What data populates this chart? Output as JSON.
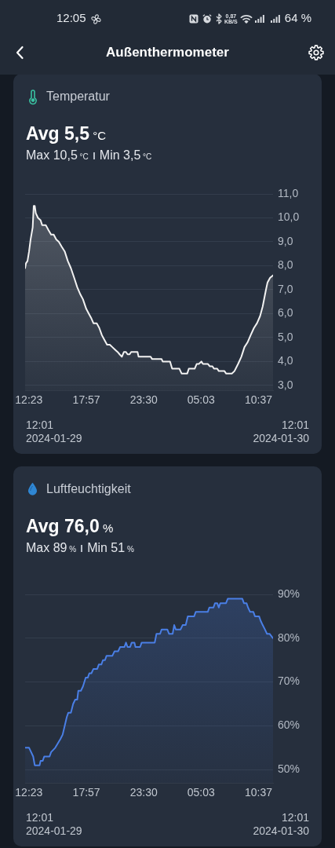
{
  "chart_data": [
    {
      "type": "area",
      "title": "Temperatur",
      "annotations": [
        "12:05",
        "0,87 KB/S",
        "64 %",
        "Außenthermometer",
        "Avg 5,5 °C",
        "Max 10,5 °C",
        "Min 3,5 °C",
        "12:01",
        "2024-01-29",
        "12:01",
        "2024-01-30"
      ],
      "x": [
        "2024-01-29T12:01",
        "2024-01-29T12:06",
        "2024-01-29T12:15",
        "2024-01-29T12:24",
        "2024-01-29T12:33",
        "2024-01-29T12:45",
        "2024-01-29T12:51",
        "2024-01-29T12:57",
        "2024-01-29T13:03",
        "2024-01-29T13:16",
        "2024-01-29T13:31",
        "2024-01-29T13:40",
        "2024-01-29T14:01",
        "2024-01-29T14:16",
        "2024-01-29T14:32",
        "2024-01-29T14:47",
        "2024-01-29T15:02",
        "2024-01-29T15:17",
        "2024-01-29T15:33",
        "2024-01-29T15:51",
        "2024-01-29T16:09",
        "2024-01-29T16:27",
        "2024-01-29T16:46",
        "2024-01-29T17:04",
        "2024-01-29T17:22",
        "2024-01-29T17:37",
        "2024-01-29T17:56",
        "2024-01-29T18:11",
        "2024-01-29T18:26",
        "2024-01-29T18:38",
        "2024-01-29T18:57",
        "2024-01-29T19:12",
        "2024-01-29T19:27",
        "2024-01-29T19:42",
        "2024-01-29T19:57",
        "2024-01-29T20:13",
        "2024-01-29T20:28",
        "2024-01-29T20:43",
        "2024-01-29T20:58",
        "2024-01-29T21:10",
        "2024-01-29T21:23",
        "2024-01-29T21:35",
        "2024-01-29T21:47",
        "2024-01-29T21:56",
        "2024-01-29T22:08",
        "2024-01-29T22:17",
        "2024-01-29T22:54",
        "2024-01-29T23:00",
        "2024-01-30T00:10",
        "2024-01-30T00:19",
        "2024-01-30T01:14",
        "2024-01-30T01:20",
        "2024-01-30T02:03",
        "2024-01-30T02:15",
        "2024-01-30T02:57",
        "2024-01-30T03:10",
        "2024-01-30T03:43",
        "2024-01-30T03:52",
        "2024-01-30T04:26",
        "2024-01-30T04:38",
        "2024-01-30T04:50",
        "2024-01-30T05:05",
        "2024-01-30T05:14",
        "2024-01-30T05:42",
        "2024-01-30T05:54",
        "2024-01-30T06:09",
        "2024-01-30T06:18",
        "2024-01-30T06:37",
        "2024-01-30T06:46",
        "2024-01-30T07:19",
        "2024-01-30T07:28",
        "2024-01-30T08:02",
        "2024-01-30T08:17",
        "2024-01-30T08:38",
        "2024-01-30T08:57",
        "2024-01-30T09:15",
        "2024-01-30T09:33",
        "2024-01-30T09:51",
        "2024-01-30T10:10",
        "2024-01-30T10:28",
        "2024-01-30T10:46",
        "2024-01-30T11:01",
        "2024-01-30T11:20",
        "2024-01-30T11:29",
        "2024-01-30T11:44",
        "2024-01-30T12:01"
      ],
      "values": [
        7.9,
        8.1,
        8.2,
        8.6,
        9.1,
        9.6,
        10.5,
        10.5,
        10.2,
        10.0,
        9.9,
        9.7,
        9.7,
        9.5,
        9.3,
        9.3,
        9.1,
        9.0,
        8.8,
        8.6,
        8.2,
        7.9,
        7.5,
        7.1,
        6.8,
        6.6,
        6.2,
        6.0,
        5.8,
        5.6,
        5.6,
        5.4,
        5.1,
        4.9,
        4.7,
        4.7,
        4.6,
        4.5,
        4.4,
        4.3,
        4.2,
        4.4,
        4.4,
        4.3,
        4.3,
        4.4,
        4.4,
        4.2,
        4.2,
        4.1,
        4.1,
        4.0,
        4.0,
        3.7,
        3.7,
        3.5,
        3.5,
        3.7,
        3.7,
        3.9,
        3.9,
        4.0,
        3.9,
        3.9,
        3.8,
        3.8,
        3.7,
        3.7,
        3.6,
        3.6,
        3.5,
        3.5,
        3.6,
        3.9,
        4.2,
        4.6,
        4.8,
        5.1,
        5.4,
        5.6,
        5.9,
        6.3,
        7.0,
        7.3,
        7.5,
        7.6
      ],
      "color": "#f2f2f2",
      "xlim": [
        "2024-01-29T12:01",
        "2024-01-30T12:01"
      ],
      "xticks": [
        {
          "value": "2024-01-29T12:23",
          "label": "12:23"
        },
        {
          "value": "2024-01-29T17:57",
          "label": "17:57"
        },
        {
          "value": "2024-01-29T23:30",
          "label": "23:30"
        },
        {
          "value": "2024-01-30T05:03",
          "label": "05:03"
        },
        {
          "value": "2024-01-30T10:37",
          "label": "10:37"
        }
      ],
      "ylim": [
        2.8,
        11
      ],
      "yticks": [
        {
          "value": 3,
          "label": "3,0"
        },
        {
          "value": 4,
          "label": "4,0"
        },
        {
          "value": 5,
          "label": "5,0"
        },
        {
          "value": 6,
          "label": "6,0"
        },
        {
          "value": 7,
          "label": "7,0"
        },
        {
          "value": 8,
          "label": "8,0"
        },
        {
          "value": 9,
          "label": "9,0"
        },
        {
          "value": 10,
          "label": "10,0"
        },
        {
          "value": 11,
          "label": "11,0"
        }
      ],
      "grid": "y"
    },
    {
      "type": "area",
      "title": "Luftfeuchtigkeit",
      "annotations": [
        "Avg 76,0 %",
        "Max 89 %",
        "Min 51 %",
        "12:01",
        "2024-01-29",
        "12:01",
        "2024-01-30"
      ],
      "x": [
        "2024-01-29T12:01",
        "2024-01-29T12:24",
        "2024-01-29T12:36",
        "2024-01-29T12:48",
        "2024-01-29T12:57",
        "2024-01-29T13:25",
        "2024-01-29T13:31",
        "2024-01-29T13:43",
        "2024-01-29T13:52",
        "2024-01-29T14:23",
        "2024-01-29T14:32",
        "2024-01-29T14:56",
        "2024-01-29T15:11",
        "2024-01-29T15:26",
        "2024-01-29T15:39",
        "2024-01-29T15:51",
        "2024-01-29T16:03",
        "2024-01-29T16:12",
        "2024-01-29T16:27",
        "2024-01-29T16:40",
        "2024-01-29T16:52",
        "2024-01-29T17:04",
        "2024-01-29T17:10",
        "2024-01-29T17:25",
        "2024-01-29T17:37",
        "2024-01-29T17:53",
        "2024-01-29T18:05",
        "2024-01-29T18:14",
        "2024-01-29T18:26",
        "2024-01-29T18:38",
        "2024-01-29T19:00",
        "2024-01-29T19:09",
        "2024-01-29T19:24",
        "2024-01-29T19:33",
        "2024-01-29T19:45",
        "2024-01-29T19:54",
        "2024-01-29T20:28",
        "2024-01-29T20:40",
        "2024-01-29T21:01",
        "2024-01-29T21:13",
        "2024-01-29T21:38",
        "2024-01-29T21:47",
        "2024-01-29T21:56",
        "2024-01-29T22:11",
        "2024-01-29T22:20",
        "2024-01-29T22:36",
        "2024-01-29T22:42",
        "2024-01-29T23:09",
        "2024-01-29T23:18",
        "2024-01-30T00:34",
        "2024-01-30T00:44",
        "2024-01-30T01:05",
        "2024-01-30T01:14",
        "2024-01-30T01:47",
        "2024-01-30T01:57",
        "2024-01-30T02:18",
        "2024-01-30T02:27",
        "2024-01-30T02:36",
        "2024-01-30T03:04",
        "2024-01-30T03:16",
        "2024-01-30T03:34",
        "2024-01-30T03:46",
        "2024-01-30T04:23",
        "2024-01-30T04:32",
        "2024-01-30T05:42",
        "2024-01-30T05:51",
        "2024-01-30T06:15",
        "2024-01-30T06:24",
        "2024-01-30T06:37",
        "2024-01-30T06:46",
        "2024-01-30T06:55",
        "2024-01-30T07:28",
        "2024-01-30T07:38",
        "2024-01-30T09:03",
        "2024-01-30T09:12",
        "2024-01-30T09:27",
        "2024-01-30T09:36",
        "2024-01-30T09:48",
        "2024-01-30T10:07",
        "2024-01-30T10:16",
        "2024-01-30T10:40",
        "2024-01-30T10:49",
        "2024-01-30T11:01",
        "2024-01-30T11:14",
        "2024-01-30T11:26",
        "2024-01-30T11:41",
        "2024-01-30T12:01"
      ],
      "values": [
        55,
        55,
        54,
        53,
        51,
        51,
        52,
        52,
        53,
        53,
        54,
        55,
        56,
        57,
        58,
        60,
        62,
        63,
        63,
        65,
        66,
        66,
        68,
        68,
        69,
        71,
        71,
        72,
        72,
        73,
        73,
        74,
        74,
        75,
        75,
        76,
        76,
        77,
        77,
        78,
        78,
        79,
        78,
        78,
        79,
        79,
        78,
        78,
        79,
        79,
        81,
        81,
        82,
        82,
        81,
        81,
        83,
        82,
        82,
        83,
        83,
        85,
        85,
        86,
        86,
        87,
        87,
        88,
        88,
        87,
        88,
        88,
        89,
        89,
        88,
        88,
        87,
        86,
        86,
        85,
        85,
        84,
        83,
        82,
        81,
        81,
        80
      ],
      "color": "#4a7fe6",
      "xlim": [
        "2024-01-29T12:01",
        "2024-01-30T12:01"
      ],
      "xticks": [
        {
          "value": "2024-01-29T12:23",
          "label": "12:23"
        },
        {
          "value": "2024-01-29T17:57",
          "label": "17:57"
        },
        {
          "value": "2024-01-29T23:30",
          "label": "23:30"
        },
        {
          "value": "2024-01-30T05:03",
          "label": "05:03"
        },
        {
          "value": "2024-01-30T10:37",
          "label": "10:37"
        }
      ],
      "ylim": [
        47,
        90
      ],
      "yticks": [
        {
          "value": 50,
          "label": "50%"
        },
        {
          "value": 60,
          "label": "60%"
        },
        {
          "value": 70,
          "label": "70%"
        },
        {
          "value": 80,
          "label": "80%"
        },
        {
          "value": 90,
          "label": "90%"
        }
      ],
      "grid": "y"
    }
  ]
}
